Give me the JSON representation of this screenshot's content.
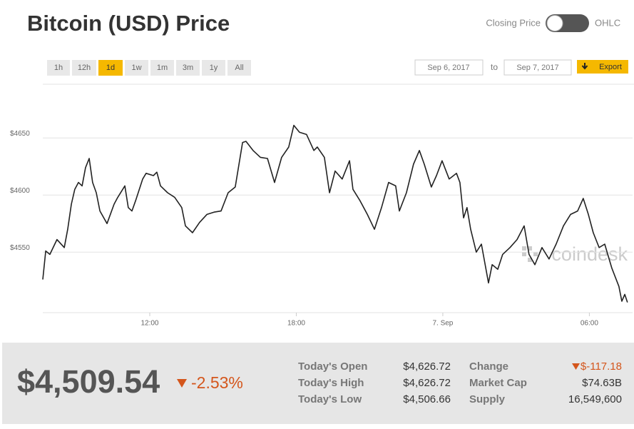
{
  "header": {
    "title": "Bitcoin (USD) Price",
    "toggle_left": "Closing Price",
    "toggle_right": "OHLC"
  },
  "controls": {
    "ranges": [
      "1h",
      "12h",
      "1d",
      "1w",
      "1m",
      "3m",
      "1y",
      "All"
    ],
    "active_range": "1d",
    "date_from": "Sep 6, 2017",
    "date_separator": "to",
    "date_to": "Sep 7, 2017",
    "export": "Export"
  },
  "chart_data": {
    "type": "line",
    "color": "#222222",
    "grid": true,
    "watermark": "coindesk",
    "x": [
      7.62,
      7.74,
      7.91,
      8.2,
      8.5,
      8.64,
      8.79,
      8.93,
      9.08,
      9.23,
      9.37,
      9.52,
      9.66,
      9.81,
      9.96,
      10.25,
      10.54,
      10.69,
      10.98,
      11.12,
      11.27,
      11.42,
      11.71,
      11.85,
      12.15,
      12.29,
      12.44,
      12.73,
      13.02,
      13.31,
      13.46,
      13.75,
      14.04,
      14.34,
      14.63,
      14.92,
      15.21,
      15.5,
      15.8,
      15.94,
      16.23,
      16.53,
      16.82,
      17.11,
      17.4,
      17.69,
      17.9,
      18.13,
      18.42,
      18.72,
      18.86,
      19.15,
      19.36,
      19.59,
      19.88,
      20.18,
      20.32,
      20.61,
      20.91,
      21.2,
      21.49,
      21.78,
      22.07,
      22.22,
      22.51,
      22.8,
      23.04,
      23.24,
      23.53,
      23.74,
      23.97,
      24.26,
      24.56,
      24.7,
      24.85,
      24.99,
      25.14,
      25.37,
      25.58,
      25.87,
      26.02,
      26.25,
      26.45,
      26.75,
      27.04,
      27.33,
      27.53,
      27.77,
      28.06,
      28.35,
      28.64,
      28.94,
      29.23,
      29.52,
      29.75,
      29.96,
      30.16,
      30.4,
      30.63,
      30.92,
      31.21,
      31.33,
      31.45,
      31.56
    ],
    "values": [
      4526,
      4551,
      4548,
      4561,
      4554,
      4570,
      4592,
      4605,
      4611,
      4608,
      4624,
      4632,
      4611,
      4602,
      4586,
      4575,
      4592,
      4598,
      4608,
      4589,
      4586,
      4595,
      4614,
      4619,
      4617,
      4620,
      4608,
      4602,
      4598,
      4589,
      4573,
      4567,
      4576,
      4583,
      4585,
      4586,
      4602,
      4607,
      4646,
      4647,
      4639,
      4633,
      4632,
      4611,
      4633,
      4642,
      4661,
      4655,
      4653,
      4639,
      4642,
      4633,
      4602,
      4621,
      4614,
      4630,
      4605,
      4595,
      4583,
      4570,
      4589,
      4611,
      4608,
      4586,
      4602,
      4627,
      4639,
      4627,
      4607,
      4617,
      4630,
      4614,
      4619,
      4611,
      4580,
      4589,
      4570,
      4550,
      4557,
      4523,
      4539,
      4535,
      4548,
      4554,
      4561,
      4573,
      4548,
      4539,
      4554,
      4544,
      4557,
      4573,
      4583,
      4586,
      4597,
      4583,
      4567,
      4554,
      4557,
      4536,
      4520,
      4507,
      4513,
      4506
    ],
    "xlim": [
      7.62,
      31.77
    ],
    "ylim": [
      4497,
      4697
    ],
    "xticks": [
      {
        "value": 12,
        "label": "12:00"
      },
      {
        "value": 18,
        "label": "18:00"
      },
      {
        "value": 24,
        "label": "7. Sep"
      },
      {
        "value": 30,
        "label": "06:00"
      }
    ],
    "yticks": [
      {
        "value": 4550,
        "label": "$4550"
      },
      {
        "value": 4600,
        "label": "$4600"
      },
      {
        "value": 4650,
        "label": "$4650"
      }
    ]
  },
  "summary": {
    "price": "$4,509.54",
    "change_percent": "-2.53%",
    "accent_color": "#d4561c",
    "stats_left": [
      {
        "label": "Today's Open",
        "value": "$4,626.72"
      },
      {
        "label": "Today's High",
        "value": "$4,626.72"
      },
      {
        "label": "Today's Low",
        "value": "$4,506.66"
      }
    ],
    "stats_right": [
      {
        "label": "Change",
        "value": "$-117.18"
      },
      {
        "label": "Market Cap",
        "value": "$74.63B"
      },
      {
        "label": "Supply",
        "value": "16,549,600"
      }
    ]
  }
}
